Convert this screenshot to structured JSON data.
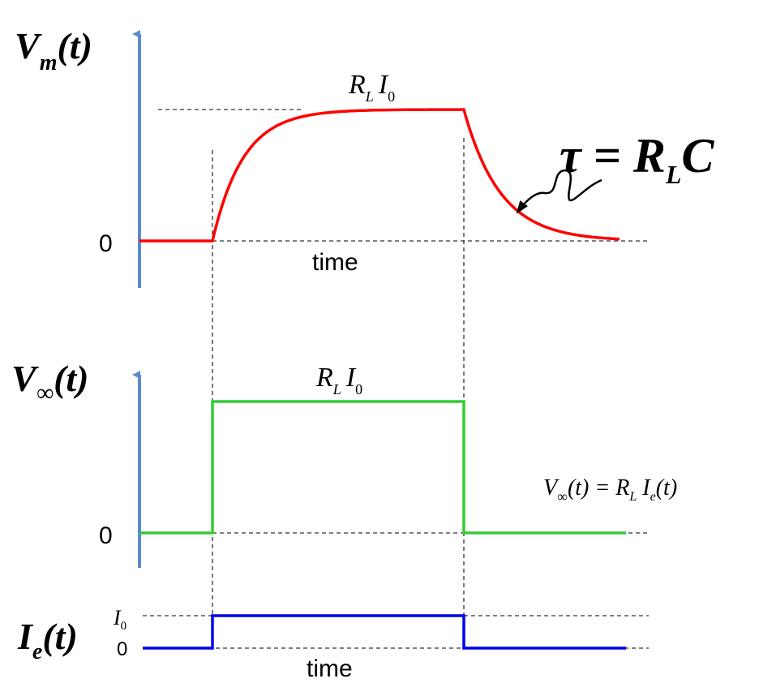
{
  "colors": {
    "axis": "#5b8bc9",
    "vm_curve": "#ff0000",
    "vinf_curve": "#33cc33",
    "ie_curve": "#0000ee",
    "guide": "#333333"
  },
  "top_panel": {
    "ylabel_main": "V",
    "ylabel_sub": "m",
    "ylabel_arg": "(t)",
    "zero_label": "0",
    "level_label_main": "R",
    "level_label_sub1": "L",
    "level_label_I": "I",
    "level_label_sub2": "0",
    "xlabel": "time",
    "tau_lhs": "τ = R",
    "tau_sub": "L",
    "tau_rhs": "C"
  },
  "middle_panel": {
    "ylabel_main": "V",
    "ylabel_sub": "∞",
    "ylabel_arg": "(t)",
    "zero_label": "0",
    "level_label_main": "R",
    "level_label_sub1": "L",
    "level_label_I": "I",
    "level_label_sub2": "0",
    "eq_V": "V",
    "eq_Vsub": "∞",
    "eq_mid": "(t) = R",
    "eq_Rsub": "L",
    "eq_I": " I",
    "eq_Isub": "e",
    "eq_end": "(t)"
  },
  "bottom_panel": {
    "ylabel_main": "I",
    "ylabel_sub": "e",
    "ylabel_arg": "(t)",
    "level_label_main": "I",
    "level_label_sub": "0",
    "zero_label": "0",
    "xlabel": "time"
  }
}
